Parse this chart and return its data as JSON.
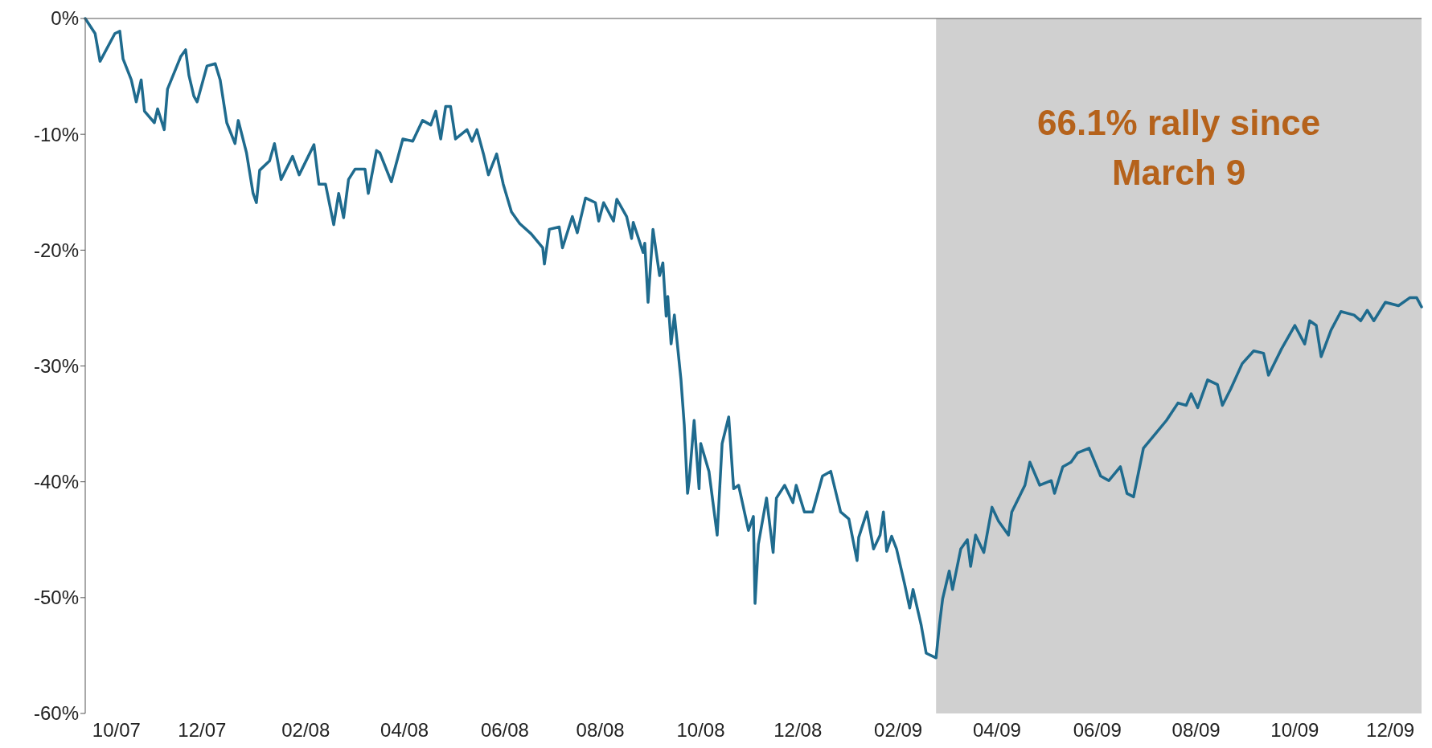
{
  "chart_data": {
    "type": "line",
    "x": [
      "2007-10-09",
      "2007-10-15",
      "2007-10-18",
      "2007-10-27",
      "2007-10-30",
      "2007-11-01",
      "2007-11-06",
      "2007-11-09",
      "2007-11-12",
      "2007-11-14",
      "2007-11-20",
      "2007-11-22",
      "2007-11-26",
      "2007-11-28",
      "2007-12-06",
      "2007-12-09",
      "2007-12-11",
      "2007-12-14",
      "2007-12-16",
      "2007-12-22",
      "2007-12-27",
      "2007-12-30",
      "2008-01-03",
      "2008-01-08",
      "2008-01-10",
      "2008-01-15",
      "2008-01-19",
      "2008-01-21",
      "2008-01-23",
      "2008-01-29",
      "2008-02-01",
      "2008-02-05",
      "2008-02-12",
      "2008-02-16",
      "2008-02-25",
      "2008-02-28",
      "2008-03-03",
      "2008-03-08",
      "2008-03-11",
      "2008-03-14",
      "2008-03-17",
      "2008-03-21",
      "2008-03-27",
      "2008-03-29",
      "2008-04-03",
      "2008-04-05",
      "2008-04-12",
      "2008-04-19",
      "2008-04-25",
      "2008-05-01",
      "2008-05-06",
      "2008-05-09",
      "2008-05-12",
      "2008-05-15",
      "2008-05-18",
      "2008-05-21",
      "2008-05-28",
      "2008-05-31",
      "2008-06-03",
      "2008-06-07",
      "2008-06-10",
      "2008-06-15",
      "2008-06-19",
      "2008-06-24",
      "2008-06-29",
      "2008-07-06",
      "2008-07-13",
      "2008-07-14",
      "2008-07-17",
      "2008-07-23",
      "2008-07-25",
      "2008-07-31",
      "2008-08-03",
      "2008-08-08",
      "2008-08-14",
      "2008-08-16",
      "2008-08-19",
      "2008-08-25",
      "2008-08-27",
      "2008-09-02",
      "2008-09-05",
      "2008-09-06",
      "2008-09-12",
      "2008-09-13",
      "2008-09-15",
      "2008-09-18",
      "2008-09-22",
      "2008-09-24",
      "2008-09-26",
      "2008-09-27",
      "2008-09-29",
      "2008-10-01",
      "2008-10-05",
      "2008-10-07",
      "2008-10-09",
      "2008-10-10",
      "2008-10-13",
      "2008-10-16",
      "2008-10-17",
      "2008-10-22",
      "2008-10-27",
      "2008-10-30",
      "2008-11-03",
      "2008-11-06",
      "2008-11-09",
      "2008-11-15",
      "2008-11-18",
      "2008-11-19",
      "2008-11-21",
      "2008-11-26",
      "2008-11-30",
      "2008-12-02",
      "2008-12-07",
      "2008-12-12",
      "2008-12-14",
      "2008-12-19",
      "2008-12-24",
      "2008-12-30",
      "2009-01-04",
      "2009-01-10",
      "2009-01-15",
      "2009-01-20",
      "2009-01-21",
      "2009-01-26",
      "2009-01-30",
      "2009-02-03",
      "2009-02-05",
      "2009-02-07",
      "2009-02-10",
      "2009-02-13",
      "2009-02-18",
      "2009-02-21",
      "2009-02-23",
      "2009-02-28",
      "2009-03-03",
      "2009-03-09",
      "2009-03-11",
      "2009-03-13",
      "2009-03-17",
      "2009-03-19",
      "2009-03-24",
      "2009-03-28",
      "2009-03-30",
      "2009-04-02",
      "2009-04-07",
      "2009-04-12",
      "2009-04-16",
      "2009-04-22",
      "2009-04-24",
      "2009-05-02",
      "2009-05-05",
      "2009-05-11",
      "2009-05-18",
      "2009-05-20",
      "2009-05-25",
      "2009-05-30",
      "2009-06-03",
      "2009-06-10",
      "2009-06-17",
      "2009-06-22",
      "2009-06-29",
      "2009-07-03",
      "2009-07-07",
      "2009-07-13",
      "2009-07-20",
      "2009-07-27",
      "2009-08-03",
      "2009-08-08",
      "2009-08-11",
      "2009-08-15",
      "2009-08-21",
      "2009-08-27",
      "2009-08-30",
      "2009-09-04",
      "2009-09-11",
      "2009-09-18",
      "2009-09-24",
      "2009-09-27",
      "2009-10-05",
      "2009-10-13",
      "2009-10-19",
      "2009-10-22",
      "2009-10-26",
      "2009-10-29",
      "2009-11-04",
      "2009-11-10",
      "2009-11-18",
      "2009-11-22",
      "2009-11-26",
      "2009-11-30",
      "2009-12-07",
      "2009-12-15",
      "2009-12-22",
      "2009-12-26",
      "2009-12-29"
    ],
    "series": [
      {
        "color": "#1f6b8e",
        "values": [
          0,
          -1.3,
          -3.7,
          -1.3,
          -1.1,
          -3.5,
          -5.3,
          -7.2,
          -5.3,
          -8.0,
          -9.0,
          -7.8,
          -9.6,
          -6.1,
          -3.3,
          -2.7,
          -4.9,
          -6.7,
          -7.2,
          -4.1,
          -3.9,
          -5.3,
          -9.0,
          -10.8,
          -8.8,
          -11.6,
          -15.1,
          -15.9,
          -13.1,
          -12.3,
          -10.8,
          -13.9,
          -11.9,
          -13.5,
          -10.9,
          -14.3,
          -14.3,
          -17.8,
          -15.1,
          -17.2,
          -13.9,
          -13.0,
          -13.0,
          -15.1,
          -11.4,
          -11.6,
          -14.1,
          -10.4,
          -10.6,
          -8.8,
          -9.2,
          -8.0,
          -10.4,
          -7.6,
          -7.6,
          -10.4,
          -9.6,
          -10.6,
          -9.6,
          -11.7,
          -13.5,
          -11.7,
          -14.3,
          -16.7,
          -17.7,
          -18.6,
          -19.8,
          -21.2,
          -18.2,
          -18.0,
          -19.8,
          -17.1,
          -18.5,
          -15.5,
          -15.9,
          -17.5,
          -15.9,
          -17.5,
          -15.6,
          -17.1,
          -19.0,
          -17.6,
          -20.2,
          -19.4,
          -24.5,
          -18.2,
          -22.2,
          -21.1,
          -25.7,
          -24.0,
          -28.1,
          -25.6,
          -31.2,
          -35.1,
          -41.0,
          -39.9,
          -34.7,
          -40.6,
          -36.7,
          -39.1,
          -44.6,
          -36.7,
          -34.4,
          -40.6,
          -40.3,
          -44.2,
          -43.0,
          -50.5,
          -45.4,
          -41.4,
          -46.1,
          -41.4,
          -40.3,
          -41.8,
          -40.3,
          -42.6,
          -42.6,
          -39.5,
          -39.1,
          -42.6,
          -43.2,
          -46.8,
          -44.8,
          -42.6,
          -45.8,
          -44.6,
          -42.6,
          -46.0,
          -44.7,
          -45.8,
          -48.9,
          -50.9,
          -49.3,
          -52.4,
          -54.8,
          -55.2,
          -52.4,
          -50.1,
          -47.7,
          -49.3,
          -45.8,
          -45.0,
          -47.3,
          -44.6,
          -46.1,
          -42.2,
          -43.4,
          -44.6,
          -42.6,
          -40.3,
          -38.3,
          -40.3,
          -39.9,
          -41.0,
          -38.7,
          -38.3,
          -37.5,
          -37.1,
          -39.5,
          -39.9,
          -38.7,
          -41.0,
          -41.3,
          -37.1,
          -35.9,
          -34.7,
          -33.2,
          -33.4,
          -32.4,
          -33.6,
          -31.2,
          -31.6,
          -33.4,
          -32.0,
          -29.8,
          -28.7,
          -28.9,
          -30.8,
          -28.5,
          -26.5,
          -28.1,
          -26.1,
          -26.5,
          -29.2,
          -26.9,
          -25.3,
          -25.6,
          -26.1,
          -25.2,
          -26.1,
          -24.5,
          -24.8,
          -24.1,
          -24.1,
          -24.9
        ]
      }
    ],
    "xlim": [
      "2007-10-09",
      "2009-12-29"
    ],
    "xticks": [
      {
        "value": "2007-10-28",
        "label": "10/07"
      },
      {
        "value": "2007-12-19",
        "label": "12/07"
      },
      {
        "value": "2008-02-20",
        "label": "02/08"
      },
      {
        "value": "2008-04-20",
        "label": "04/08"
      },
      {
        "value": "2008-06-20",
        "label": "06/08"
      },
      {
        "value": "2008-08-17",
        "label": "08/08"
      },
      {
        "value": "2008-10-17",
        "label": "10/08"
      },
      {
        "value": "2008-12-15",
        "label": "12/08"
      },
      {
        "value": "2009-02-14",
        "label": "02/09"
      },
      {
        "value": "2009-04-15",
        "label": "04/09"
      },
      {
        "value": "2009-06-15",
        "label": "06/09"
      },
      {
        "value": "2009-08-14",
        "label": "08/09"
      },
      {
        "value": "2009-10-13",
        "label": "10/09"
      },
      {
        "value": "2009-12-10",
        "label": "12/09"
      }
    ],
    "ylim": [
      -60,
      0
    ],
    "yticks": [
      {
        "value": -60,
        "label": "-60%"
      },
      {
        "value": -50,
        "label": "-50%"
      },
      {
        "value": -40,
        "label": "-40%"
      },
      {
        "value": -30,
        "label": "-30%"
      },
      {
        "value": -20,
        "label": "-20%"
      },
      {
        "value": -10,
        "label": "-10%"
      },
      {
        "value": 0,
        "label": "0%"
      }
    ],
    "bands": [
      {
        "axis": "x",
        "from": "2009-03-09",
        "to": "2009-12-29",
        "color": "#d0d0d0",
        "label": "66.1% rally since March 9"
      }
    ],
    "line_style": "solid",
    "marker": "none",
    "grid": false
  }
}
